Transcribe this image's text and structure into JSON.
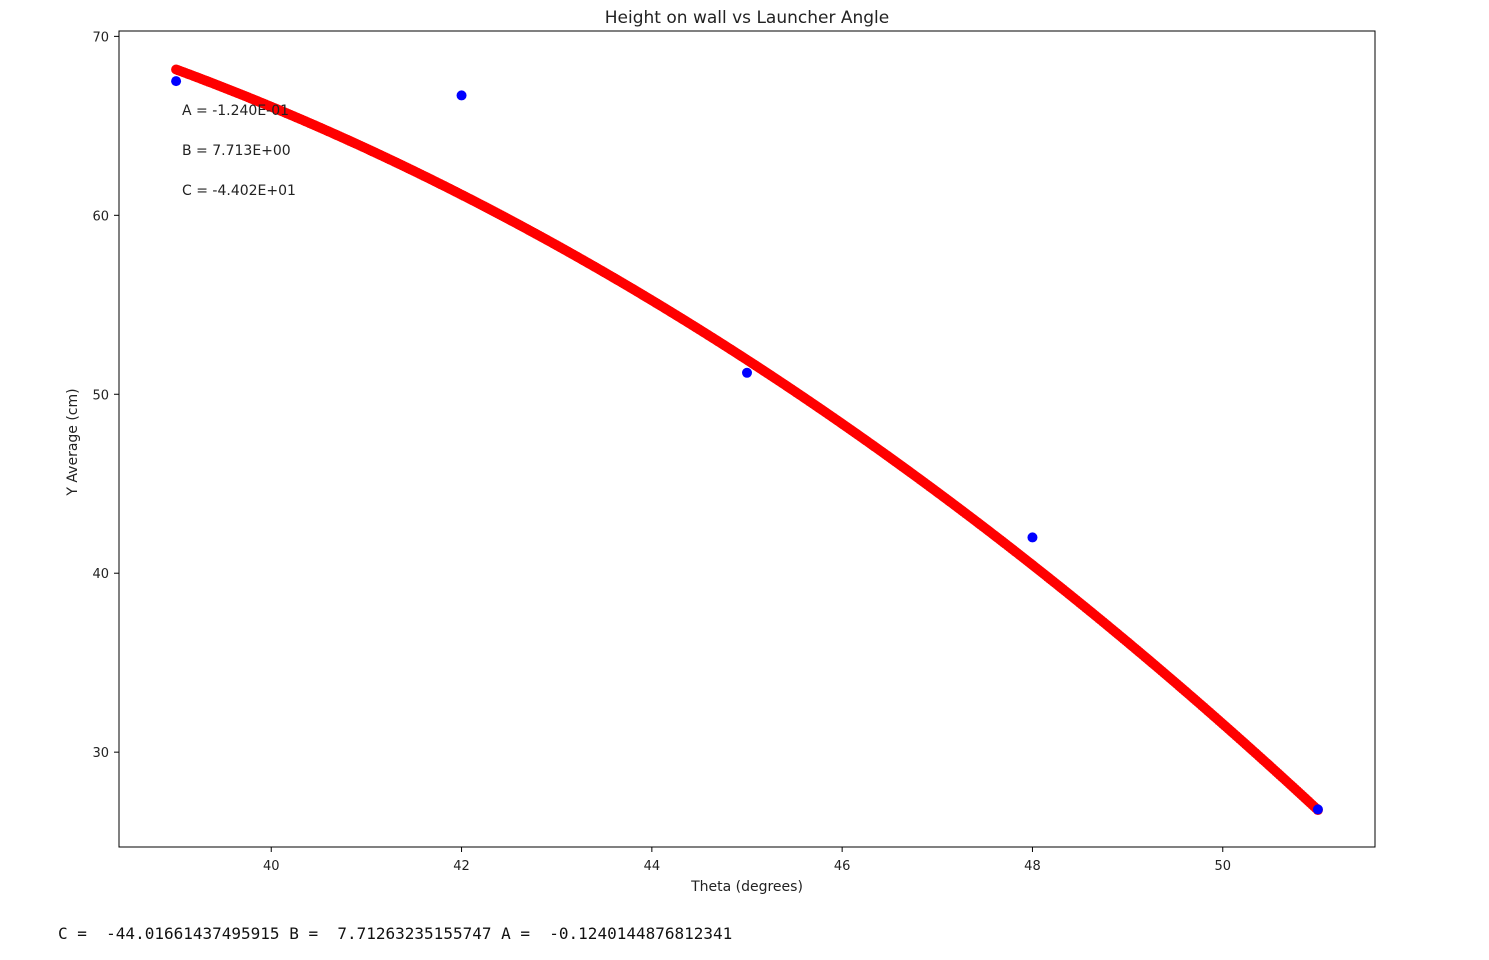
{
  "chart_data": {
    "type": "scatter",
    "title": "Height on wall vs Launcher Angle",
    "xlabel": "Theta (degrees)",
    "ylabel": "Y Average (cm)",
    "xlim": [
      38.4,
      51.6
    ],
    "ylim": [
      24.7,
      70.3
    ],
    "xticks": [
      40,
      42,
      44,
      46,
      48,
      50
    ],
    "yticks": [
      30,
      40,
      50,
      60,
      70
    ],
    "grid": false,
    "series": [
      {
        "kind": "points",
        "color": "#0000ff",
        "x": [
          39,
          42,
          45,
          48,
          51
        ],
        "y": [
          67.5,
          66.7,
          51.2,
          42.0,
          26.8
        ]
      },
      {
        "kind": "fit",
        "color": "#ff0000",
        "x_range": [
          39,
          51
        ],
        "coefficients": {
          "A": -0.1240144876812341,
          "B": 7.71263235155747,
          "C": -44.01661437495915
        }
      }
    ],
    "annotations": [
      "A = -1.240E-01",
      "B = 7.713E+00",
      "C = -4.402E+01"
    ]
  },
  "console": {
    "text": "C =  -44.01661437495915 B =  7.71263235155747 A =  -0.1240144876812341"
  }
}
